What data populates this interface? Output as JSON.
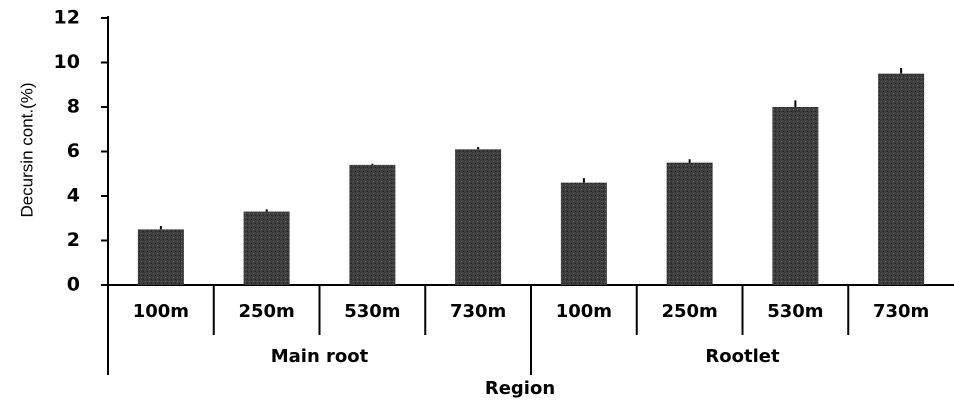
{
  "chart_data": {
    "type": "bar",
    "categories": [
      "100m",
      "250m",
      "530m",
      "730m",
      "100m",
      "250m",
      "530m",
      "730m"
    ],
    "groups": [
      {
        "label": "Main root",
        "categories": [
          "100m",
          "250m",
          "530m",
          "730m"
        ]
      },
      {
        "label": "Rootlet",
        "categories": [
          "100m",
          "250m",
          "530m",
          "730m"
        ]
      }
    ],
    "values": [
      2.5,
      3.3,
      5.4,
      6.1,
      4.6,
      5.5,
      8.0,
      9.5
    ],
    "errors": [
      0.15,
      0.1,
      0.05,
      0.1,
      0.2,
      0.15,
      0.3,
      0.25
    ],
    "title": "",
    "xlabel": "Region",
    "ylabel": "Decursin cont.(%)",
    "ylim": [
      0,
      12
    ],
    "yticks": [
      "0",
      "2",
      "4",
      "6",
      "8",
      "10",
      "12"
    ],
    "grid": false,
    "colors": {
      "bar": "#3c3c3c",
      "axis": "#000000"
    }
  }
}
